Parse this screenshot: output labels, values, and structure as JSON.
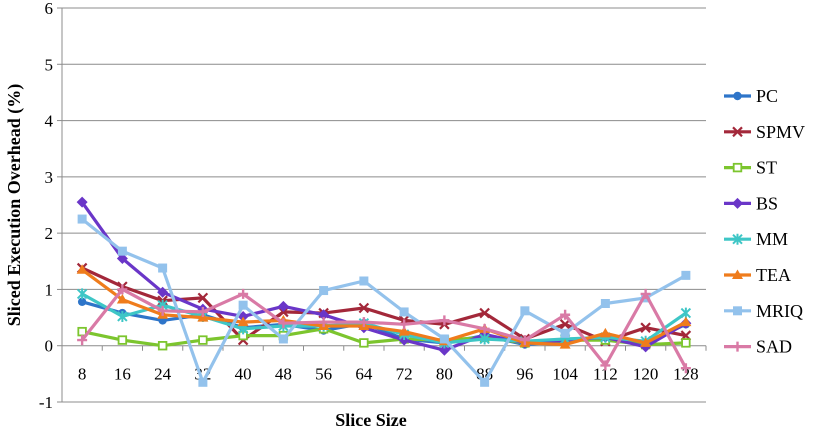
{
  "chart_data": {
    "type": "line",
    "xlabel": "Slice Size",
    "ylabel": "Sliced Execution Overhead (%)",
    "ylim": [
      -1,
      6
    ],
    "yticks": [
      -1,
      0,
      1,
      2,
      3,
      4,
      5,
      6
    ],
    "grid": true,
    "legend_position": "right",
    "categories": [
      "8",
      "16",
      "24",
      "32",
      "40",
      "48",
      "56",
      "64",
      "72",
      "80",
      "88",
      "96",
      "104",
      "112",
      "120",
      "128"
    ],
    "series": [
      {
        "name": "PC",
        "color": "#2e75c9",
        "marker": "circle",
        "values": [
          0.78,
          0.58,
          0.45,
          0.55,
          0.32,
          0.38,
          0.27,
          0.4,
          0.12,
          0.05,
          0.18,
          0.02,
          0.08,
          0.18,
          0.05,
          0.38
        ]
      },
      {
        "name": "SPMV",
        "color": "#a3283a",
        "marker": "x",
        "values": [
          1.38,
          1.05,
          0.8,
          0.85,
          0.1,
          0.6,
          0.58,
          0.67,
          0.45,
          0.38,
          0.58,
          0.12,
          0.38,
          0.08,
          0.32,
          0.18
        ]
      },
      {
        "name": "ST",
        "color": "#7cc52e",
        "marker": "square-open",
        "values": [
          0.25,
          0.1,
          0.0,
          0.1,
          0.18,
          0.18,
          0.3,
          0.05,
          0.12,
          0.1,
          0.15,
          0.05,
          0.1,
          0.1,
          0.02,
          0.05
        ]
      },
      {
        "name": "BS",
        "color": "#6a36c8",
        "marker": "diamond",
        "values": [
          2.55,
          1.55,
          0.95,
          0.65,
          0.52,
          0.7,
          0.55,
          0.32,
          0.1,
          -0.08,
          0.2,
          0.05,
          0.1,
          0.15,
          -0.02,
          0.4
        ]
      },
      {
        "name": "MM",
        "color": "#3ec6c6",
        "marker": "star",
        "values": [
          0.92,
          0.52,
          0.72,
          0.52,
          0.3,
          0.35,
          0.35,
          0.4,
          0.2,
          0.05,
          0.12,
          0.08,
          0.12,
          0.15,
          0.08,
          0.58
        ]
      },
      {
        "name": "TEA",
        "color": "#ef7c1c",
        "marker": "triangle",
        "values": [
          1.35,
          0.82,
          0.55,
          0.5,
          0.42,
          0.45,
          0.35,
          0.35,
          0.25,
          0.08,
          0.3,
          0.05,
          0.02,
          0.22,
          0.05,
          0.42
        ]
      },
      {
        "name": "MRIQ",
        "color": "#93c2ec",
        "marker": "square",
        "values": [
          2.25,
          1.68,
          1.38,
          -0.65,
          0.72,
          0.12,
          0.98,
          1.15,
          0.6,
          0.12,
          -0.65,
          0.62,
          0.22,
          0.75,
          0.85,
          1.25
        ]
      },
      {
        "name": "SAD",
        "color": "#d97aa6",
        "marker": "plus",
        "values": [
          0.1,
          1.0,
          0.62,
          0.6,
          0.92,
          0.4,
          0.42,
          0.42,
          0.38,
          0.45,
          0.3,
          0.1,
          0.55,
          -0.35,
          0.92,
          -0.4
        ]
      }
    ]
  }
}
